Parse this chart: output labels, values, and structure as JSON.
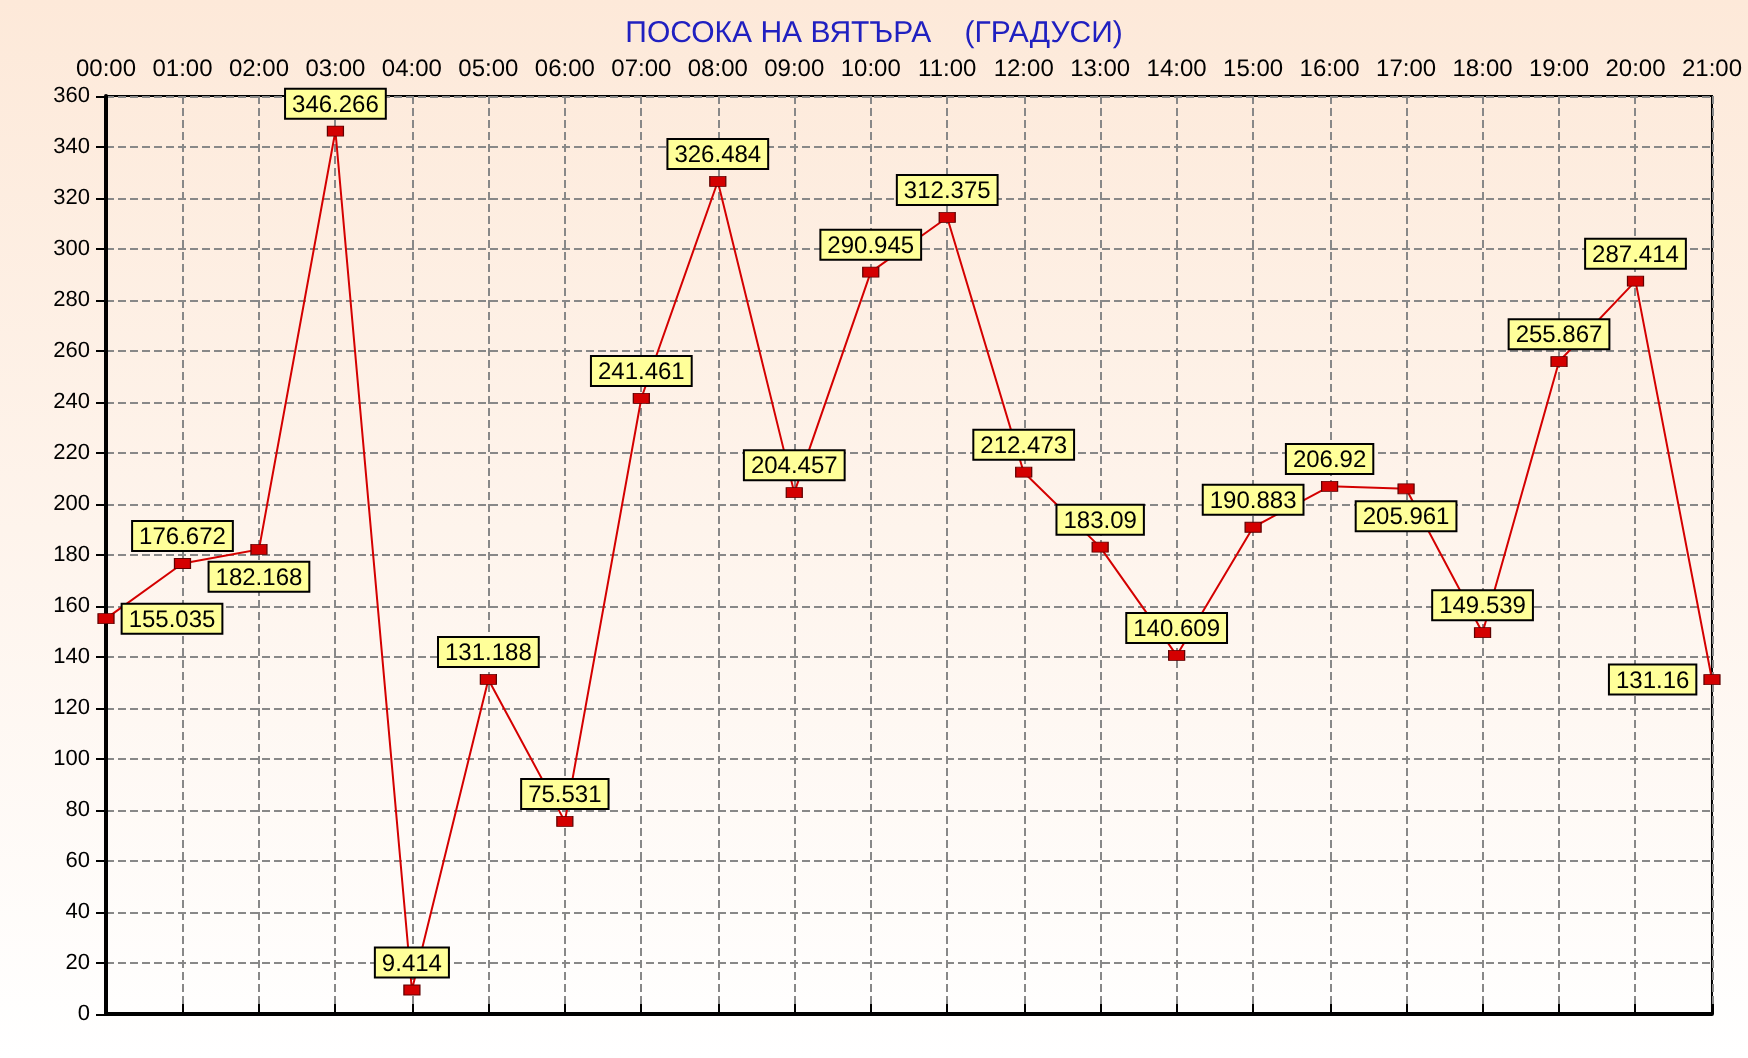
{
  "chart_data": {
    "type": "line",
    "title": "ПОСОКА НА ВЯТЪРА    (ГРАДУСИ)",
    "categories": [
      "00:00",
      "01:00",
      "02:00",
      "03:00",
      "04:00",
      "05:00",
      "06:00",
      "07:00",
      "08:00",
      "09:00",
      "10:00",
      "11:00",
      "12:00",
      "13:00",
      "14:00",
      "15:00",
      "16:00",
      "17:00",
      "18:00",
      "19:00",
      "20:00",
      "21:00"
    ],
    "series": [
      {
        "color": "#d40000",
        "values": [
          155.035,
          176.672,
          182.168,
          346.266,
          9.414,
          131.188,
          75.531,
          241.461,
          326.484,
          204.457,
          290.945,
          312.375,
          212.473,
          183.09,
          140.609,
          190.883,
          206.92,
          205.961,
          149.539,
          255.867,
          287.414,
          131.16
        ]
      }
    ],
    "ylim": [
      0,
      360
    ],
    "yticks": [
      0,
      20,
      40,
      60,
      80,
      100,
      120,
      140,
      160,
      180,
      200,
      220,
      240,
      260,
      280,
      300,
      320,
      340,
      360
    ],
    "grid": true,
    "marker": "square",
    "line_style": "solid",
    "data_labels": true
  }
}
